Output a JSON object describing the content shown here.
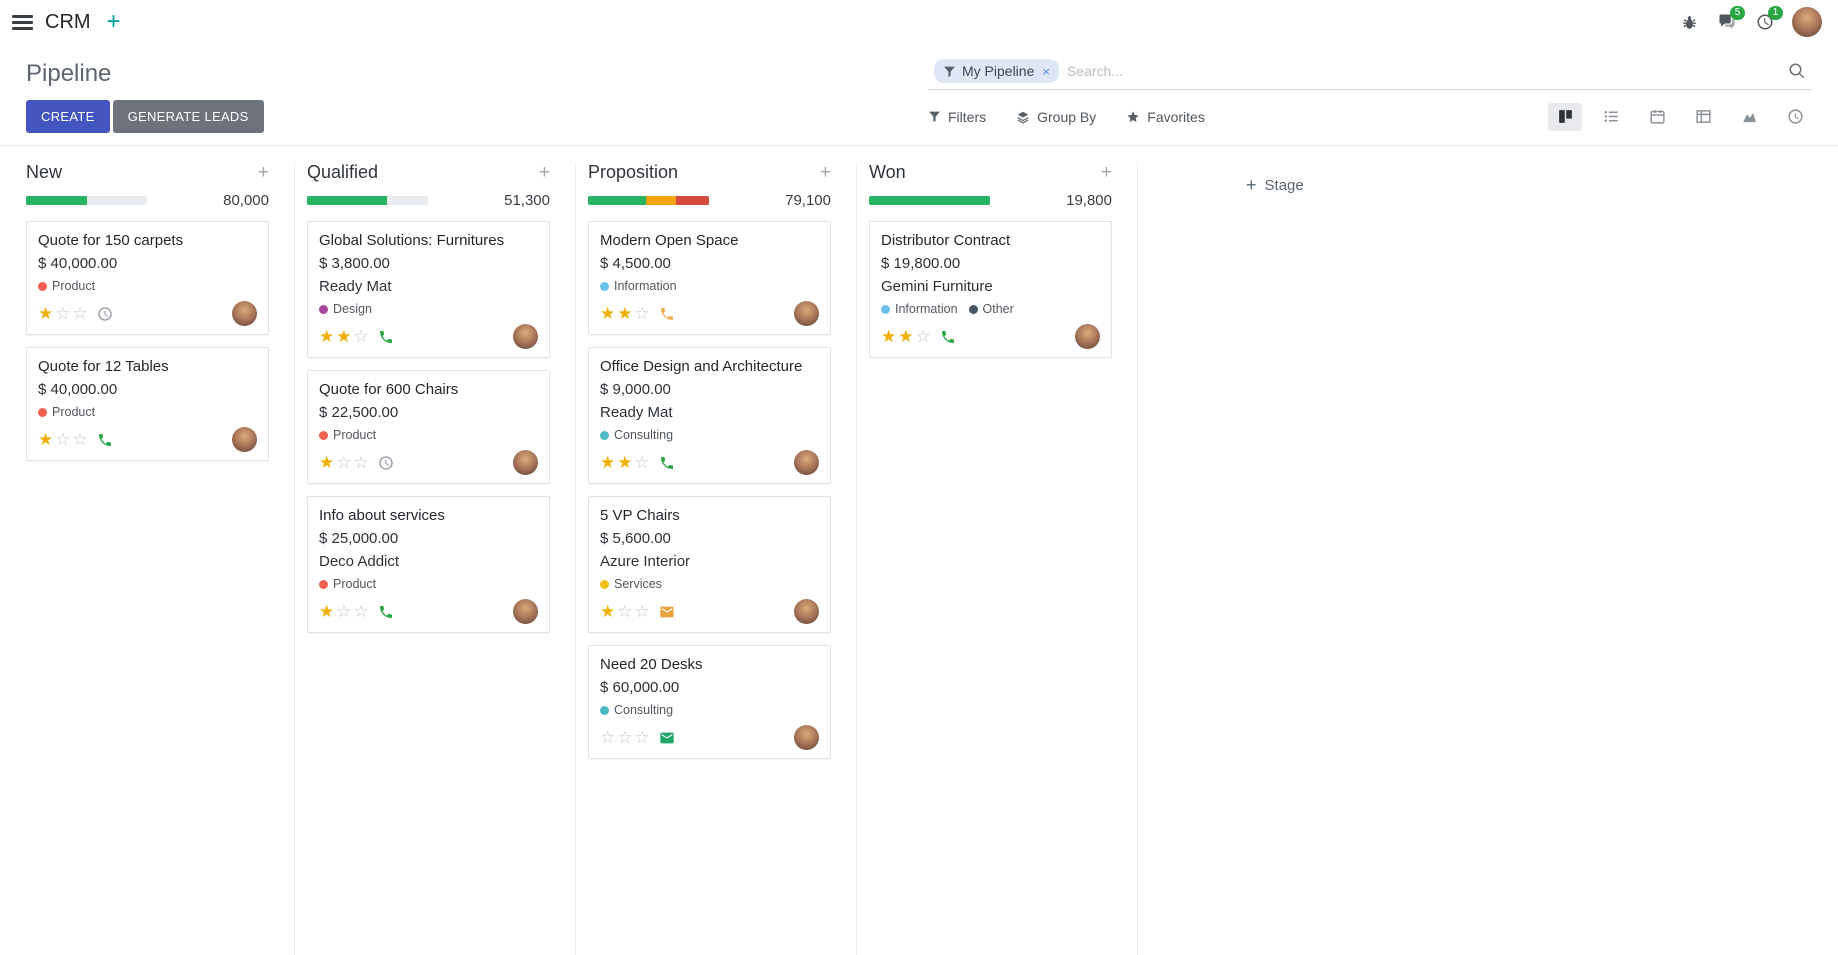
{
  "colors": {
    "accent": "#4356c0",
    "secondary": "#6e727c",
    "success": "#28a745",
    "navbar_plus": "#00a09d"
  },
  "navbar": {
    "app_name": "CRM",
    "messages_badge": "5",
    "activities_badge": "1"
  },
  "control_panel": {
    "title": "Pipeline",
    "create_label": "CREATE",
    "generate_leads_label": "GENERATE LEADS",
    "search": {
      "facet_label": "My Pipeline",
      "facet_remove": "×",
      "placeholder": "Search..."
    },
    "filters_label": "Filters",
    "group_by_label": "Group By",
    "favorites_label": "Favorites"
  },
  "board": {
    "add_stage_label": "Stage",
    "columns": [
      {
        "name": "New",
        "total": "80,000",
        "progress": [
          {
            "color": "#28b463",
            "pct": 50
          }
        ],
        "cards": [
          {
            "title": "Quote for 150 carpets",
            "amount": "$ 40,000.00",
            "tags": [
              {
                "label": "Product",
                "color": "#f06050"
              }
            ],
            "stars": 1,
            "activity": {
              "icon": "clock",
              "color": "#8f959d"
            }
          },
          {
            "title": "Quote for 12 Tables",
            "amount": "$ 40,000.00",
            "tags": [
              {
                "label": "Product",
                "color": "#f06050"
              }
            ],
            "stars": 1,
            "activity": {
              "icon": "phone",
              "color": "#28a745"
            }
          }
        ]
      },
      {
        "name": "Qualified",
        "total": "51,300",
        "progress": [
          {
            "color": "#28b463",
            "pct": 66
          }
        ],
        "cards": [
          {
            "title": "Global Solutions: Furnitures",
            "amount": "$ 3,800.00",
            "partner": "Ready Mat",
            "tags": [
              {
                "label": "Design",
                "color": "#a9449c"
              }
            ],
            "stars": 2,
            "activity": {
              "icon": "phone",
              "color": "#28a745"
            }
          },
          {
            "title": "Quote for 600 Chairs",
            "amount": "$ 22,500.00",
            "tags": [
              {
                "label": "Product",
                "color": "#f06050"
              }
            ],
            "stars": 1,
            "activity": {
              "icon": "clock",
              "color": "#8f959d"
            }
          },
          {
            "title": "Info about services",
            "amount": "$ 25,000.00",
            "partner": "Deco Addict",
            "tags": [
              {
                "label": "Product",
                "color": "#f06050"
              }
            ],
            "stars": 1,
            "activity": {
              "icon": "phone",
              "color": "#28a745"
            }
          }
        ]
      },
      {
        "name": "Proposition",
        "total": "79,100",
        "progress": [
          {
            "color": "#28b463",
            "pct": 48
          },
          {
            "color": "#f2a60d",
            "pct": 25
          },
          {
            "color": "#d44a3e",
            "pct": 27
          }
        ],
        "cards": [
          {
            "title": "Modern Open Space",
            "amount": "$ 4,500.00",
            "tags": [
              {
                "label": "Information",
                "color": "#6cc1ed"
              }
            ],
            "stars": 2,
            "activity": {
              "icon": "phone",
              "color": "#f0ad4e"
            }
          },
          {
            "title": "Office Design and Architecture",
            "amount": "$ 9,000.00",
            "partner": "Ready Mat",
            "tags": [
              {
                "label": "Consulting",
                "color": "#4db8c4"
              }
            ],
            "stars": 2,
            "activity": {
              "icon": "phone",
              "color": "#28a745"
            }
          },
          {
            "title": "5 VP Chairs",
            "amount": "$ 5,600.00",
            "partner": "Azure Interior",
            "tags": [
              {
                "label": "Services",
                "color": "#efc11b"
              }
            ],
            "stars": 1,
            "activity": {
              "icon": "envelope",
              "color": "#e8a33d"
            }
          },
          {
            "title": "Need 20 Desks",
            "amount": "$ 60,000.00",
            "tags": [
              {
                "label": "Consulting",
                "color": "#4db8c4"
              }
            ],
            "stars": 0,
            "activity": {
              "icon": "envelope",
              "color": "#21a567"
            }
          }
        ]
      },
      {
        "name": "Won",
        "total": "19,800",
        "progress": [
          {
            "color": "#28b463",
            "pct": 100
          }
        ],
        "cards": [
          {
            "title": "Distributor Contract",
            "amount": "$ 19,800.00",
            "partner": "Gemini Furniture",
            "tags": [
              {
                "label": "Information",
                "color": "#6cc1ed"
              },
              {
                "label": "Other",
                "color": "#455362"
              }
            ],
            "stars": 2,
            "activity": {
              "icon": "phone",
              "color": "#28a745"
            }
          }
        ]
      }
    ]
  }
}
